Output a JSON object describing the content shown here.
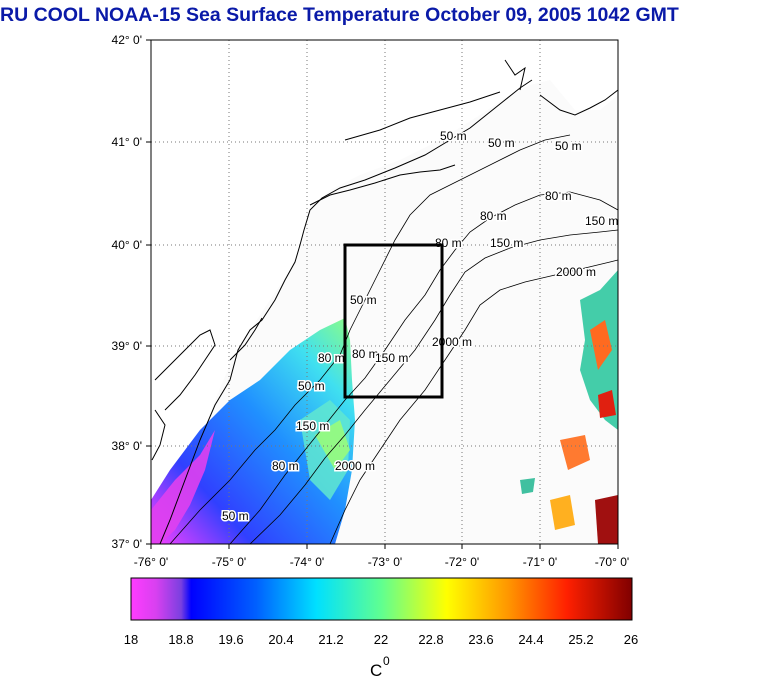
{
  "title": "RU COOL  NOAA-15 Sea Surface Temperature October 09, 2005 1042 GMT",
  "map": {
    "lat_labels": [
      "42° 0'",
      "41° 0'",
      "40° 0'",
      "39° 0'",
      "38° 0'",
      "37° 0'"
    ],
    "lon_labels": [
      "-76° 0'",
      "-75° 0'",
      "-74° 0'",
      "-73° 0'",
      "-72° 0'",
      "-71° 0'",
      "-70° 0'"
    ],
    "lat_range": [
      37,
      42
    ],
    "lon_range": [
      -76,
      -70
    ],
    "grid": "dotted",
    "study_box": {
      "lon": [
        -73.5,
        -72.3
      ],
      "lat": [
        38.5,
        40.0
      ]
    },
    "isobath_labels": [
      {
        "text": "50 m"
      },
      {
        "text": "50 m"
      },
      {
        "text": "50 m"
      },
      {
        "text": "80 m"
      },
      {
        "text": "80 m"
      },
      {
        "text": "150 m"
      },
      {
        "text": "80 m"
      },
      {
        "text": "150 m"
      },
      {
        "text": "2000 m"
      },
      {
        "text": "50 m"
      },
      {
        "text": "80 m"
      },
      {
        "text": "150 m"
      },
      {
        "text": "2000 m"
      },
      {
        "text": "50 m"
      },
      {
        "text": "80 m"
      },
      {
        "text": "150 m"
      },
      {
        "text": "2000 m"
      },
      {
        "text": "50 m"
      },
      {
        "text": "80 m"
      }
    ]
  },
  "colorbar": {
    "ticks": [
      "18",
      "18.8",
      "19.6",
      "20.4",
      "21.2",
      "22",
      "22.8",
      "23.6",
      "24.4",
      "25.2",
      "26"
    ],
    "range": [
      18,
      26
    ],
    "unit": "C",
    "unit_sup": "0",
    "colors": [
      "#ff33ff",
      "#0000ff",
      "#00ddff",
      "#66ff66",
      "#ffff00",
      "#ff7700",
      "#ff0000",
      "#800000"
    ]
  }
}
